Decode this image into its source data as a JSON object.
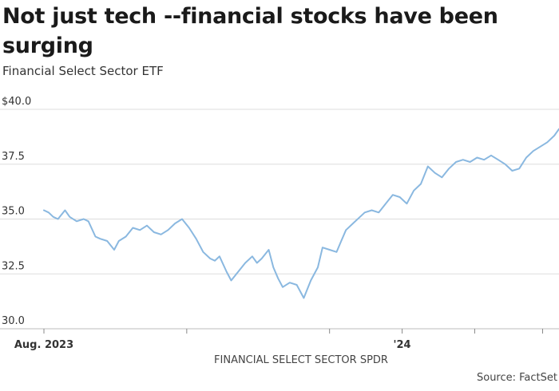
{
  "title": "Not just tech --financial stocks have been surging",
  "subtitle": "Financial Select Sector ETF",
  "source": "Source: FactSet",
  "chart_data": {
    "type": "line",
    "title": "Not just tech --financial stocks have been surging",
    "subtitle": "Financial Select Sector ETF",
    "xlabel": "FINANCIAL SELECT SECTOR SPDR",
    "ylabel": "",
    "ylim": [
      30.0,
      40.0
    ],
    "yticks": [
      {
        "value": 40.0,
        "label": "$40.0"
      },
      {
        "value": 37.5,
        "label": "37.5"
      },
      {
        "value": 35.0,
        "label": "35.0"
      },
      {
        "value": 32.5,
        "label": "32.5"
      },
      {
        "value": 30.0,
        "label": "30.0"
      }
    ],
    "xticks": [
      {
        "date": "2023-08-01",
        "label": "Aug. 2023"
      },
      {
        "date": "2023-10-01",
        "label": ""
      },
      {
        "date": "2023-12-01",
        "label": ""
      },
      {
        "date": "2024-01-01",
        "label": "'24"
      },
      {
        "date": "2024-02-01",
        "label": ""
      },
      {
        "date": "2024-03-01",
        "label": ""
      }
    ],
    "xrange": [
      "2023-08-01",
      "2024-03-08"
    ],
    "grid": "horizontal",
    "line_color": "#8ab8e0",
    "series": [
      {
        "x": [
          "2023-08-01",
          "2023-08-03",
          "2023-08-05",
          "2023-08-07",
          "2023-08-10",
          "2023-08-12",
          "2023-08-15",
          "2023-08-18",
          "2023-08-20",
          "2023-08-23",
          "2023-08-25",
          "2023-08-28",
          "2023-08-31",
          "2023-09-02",
          "2023-09-05",
          "2023-09-08",
          "2023-09-11",
          "2023-09-14",
          "2023-09-17",
          "2023-09-20",
          "2023-09-23",
          "2023-09-26",
          "2023-09-29",
          "2023-10-02",
          "2023-10-05",
          "2023-10-08",
          "2023-10-11",
          "2023-10-13",
          "2023-10-15",
          "2023-10-18",
          "2023-10-20",
          "2023-10-23",
          "2023-10-26",
          "2023-10-29",
          "2023-10-31",
          "2023-11-02",
          "2023-11-05",
          "2023-11-07",
          "2023-11-09",
          "2023-11-11",
          "2023-11-14",
          "2023-11-17",
          "2023-11-20",
          "2023-11-23",
          "2023-11-26",
          "2023-11-28",
          "2023-12-01",
          "2023-12-04",
          "2023-12-06",
          "2023-12-08",
          "2023-12-11",
          "2023-12-14",
          "2023-12-16",
          "2023-12-19",
          "2023-12-22",
          "2023-12-25",
          "2023-12-28",
          "2023-12-31",
          "2024-01-03",
          "2024-01-06",
          "2024-01-09",
          "2024-01-12",
          "2024-01-15",
          "2024-01-18",
          "2024-01-21",
          "2024-01-24",
          "2024-01-27",
          "2024-01-30",
          "2024-02-02",
          "2024-02-05",
          "2024-02-08",
          "2024-02-11",
          "2024-02-14",
          "2024-02-17",
          "2024-02-20",
          "2024-02-23",
          "2024-02-26",
          "2024-02-29",
          "2024-03-03",
          "2024-03-06",
          "2024-03-08"
        ],
        "y": [
          35.4,
          35.3,
          35.1,
          35.0,
          35.4,
          35.1,
          34.9,
          35.0,
          34.9,
          34.2,
          34.1,
          34.0,
          33.6,
          34.0,
          34.2,
          34.6,
          34.5,
          34.7,
          34.4,
          34.3,
          34.5,
          34.8,
          35.0,
          34.6,
          34.1,
          33.5,
          33.2,
          33.1,
          33.3,
          32.6,
          32.2,
          32.6,
          33.0,
          33.3,
          33.0,
          33.2,
          33.6,
          32.8,
          32.3,
          31.9,
          32.1,
          32.0,
          31.4,
          32.2,
          32.8,
          33.7,
          33.6,
          33.5,
          34.0,
          34.5,
          34.8,
          35.1,
          35.3,
          35.4,
          35.3,
          35.7,
          36.1,
          36.0,
          35.7,
          36.3,
          36.6,
          37.4,
          37.1,
          36.9,
          37.3,
          37.6,
          37.7,
          37.6,
          37.8,
          37.7,
          37.9,
          37.7,
          37.5,
          37.2,
          37.3,
          37.8,
          38.1,
          38.3,
          38.5,
          38.8,
          39.1
        ]
      }
    ]
  }
}
